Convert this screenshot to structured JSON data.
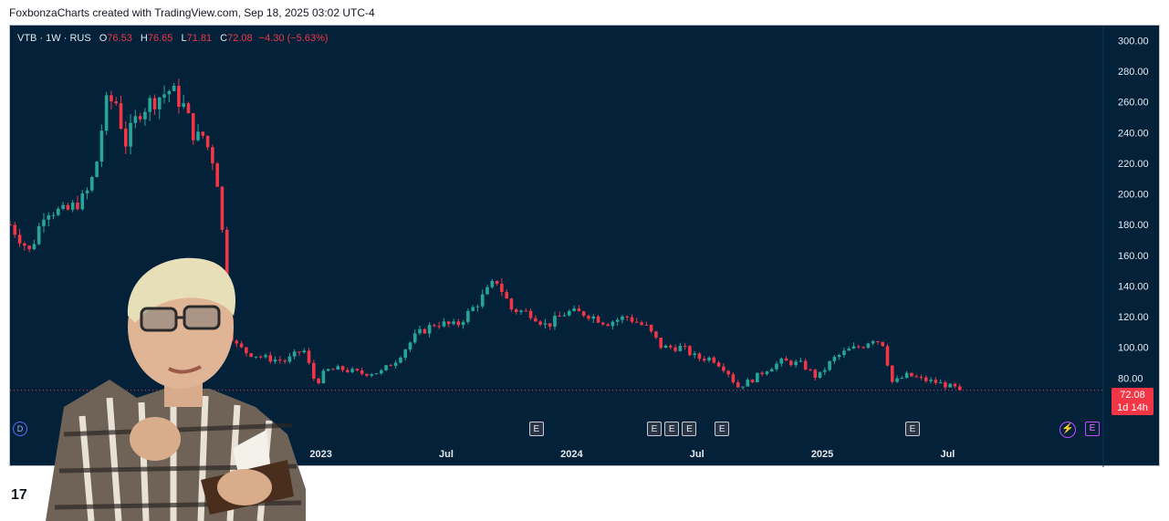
{
  "header": {
    "text": "FoxbonzaCharts created with TradingView.com, Sep 18, 2025 03:02 UTC-4"
  },
  "legend": {
    "symbol": "VTB · 1W · RUS",
    "o_label": "O",
    "o_value": "76.53",
    "h_label": "H",
    "h_value": "76.65",
    "l_label": "L",
    "l_value": "71.81",
    "c_label": "C",
    "c_value": "72.08",
    "change": "−4.30 (−5.63%)"
  },
  "price_badge": {
    "price": "72.08",
    "countdown": "1d 14h"
  },
  "event_marker_label": "E",
  "dividend_marker_label": "D",
  "colors": {
    "background": "#03223a",
    "up": "#26a69a",
    "down": "#f23645",
    "text": "#e6e9ef"
  },
  "icons": {
    "dividend": "dividend-icon",
    "earnings": "earnings-icon",
    "bolt": "bolt-icon",
    "logo": "tradingview-logo-icon",
    "overlay": "person-photo-overlay"
  },
  "chart_data": {
    "type": "candlestick",
    "interval": "1W",
    "y_ticks": [
      "80.00",
      "100.00",
      "120.00",
      "140.00",
      "160.00",
      "180.00",
      "200.00",
      "220.00",
      "240.00",
      "260.00",
      "280.00",
      "300.00"
    ],
    "ylim": [
      60,
      305
    ],
    "x_ticks": [
      {
        "label": "Jul",
        "t": 2022.5
      },
      {
        "label": "2023",
        "t": 2023.0
      },
      {
        "label": "Jul",
        "t": 2023.5
      },
      {
        "label": "2024",
        "t": 2024.0
      },
      {
        "label": "Jul",
        "t": 2024.5
      },
      {
        "label": "2025",
        "t": 2025.0
      },
      {
        "label": "Jul",
        "t": 2025.5
      }
    ],
    "xlim": [
      2021.76,
      2026.11
    ],
    "last_price": 72.08,
    "earnings_markers_t": [
      2023.86,
      2024.33,
      2024.4,
      2024.47,
      2024.6,
      2025.36
    ],
    "close_path": [
      [
        2021.76,
        180
      ],
      [
        2021.84,
        162
      ],
      [
        2021.9,
        190
      ],
      [
        2021.98,
        188
      ],
      [
        2022.06,
        198
      ],
      [
        2022.1,
        215
      ],
      [
        2022.14,
        258
      ],
      [
        2022.18,
        262
      ],
      [
        2022.22,
        233
      ],
      [
        2022.28,
        255
      ],
      [
        2022.34,
        262
      ],
      [
        2022.4,
        268
      ],
      [
        2022.45,
        258
      ],
      [
        2022.5,
        236
      ],
      [
        2022.53,
        238
      ],
      [
        2022.57,
        222
      ],
      [
        2022.6,
        198
      ],
      [
        2022.62,
        125
      ],
      [
        2022.65,
        103
      ],
      [
        2022.7,
        97
      ],
      [
        2022.78,
        93
      ],
      [
        2022.86,
        91
      ],
      [
        2022.93,
        99
      ],
      [
        2022.98,
        76
      ],
      [
        2023.02,
        85
      ],
      [
        2023.08,
        86
      ],
      [
        2023.16,
        83
      ],
      [
        2023.24,
        84
      ],
      [
        2023.3,
        92
      ],
      [
        2023.38,
        108
      ],
      [
        2023.46,
        116
      ],
      [
        2023.54,
        114
      ],
      [
        2023.62,
        128
      ],
      [
        2023.7,
        144
      ],
      [
        2023.76,
        125
      ],
      [
        2023.84,
        122
      ],
      [
        2023.9,
        114
      ],
      [
        2023.98,
        123
      ],
      [
        2024.06,
        122
      ],
      [
        2024.14,
        116
      ],
      [
        2024.22,
        120
      ],
      [
        2024.3,
        113
      ],
      [
        2024.36,
        100
      ],
      [
        2024.44,
        100
      ],
      [
        2024.5,
        93
      ],
      [
        2024.56,
        93
      ],
      [
        2024.62,
        85
      ],
      [
        2024.66,
        74
      ],
      [
        2024.72,
        79
      ],
      [
        2024.78,
        86
      ],
      [
        2024.84,
        91
      ],
      [
        2024.92,
        89
      ],
      [
        2024.98,
        80
      ],
      [
        2025.04,
        92
      ],
      [
        2025.1,
        98
      ],
      [
        2025.16,
        101
      ],
      [
        2025.2,
        106
      ],
      [
        2025.24,
        103
      ],
      [
        2025.28,
        77
      ],
      [
        2025.34,
        82
      ],
      [
        2025.4,
        79
      ],
      [
        2025.46,
        77
      ],
      [
        2025.52,
        74
      ],
      [
        2025.56,
        72.08
      ]
    ]
  }
}
